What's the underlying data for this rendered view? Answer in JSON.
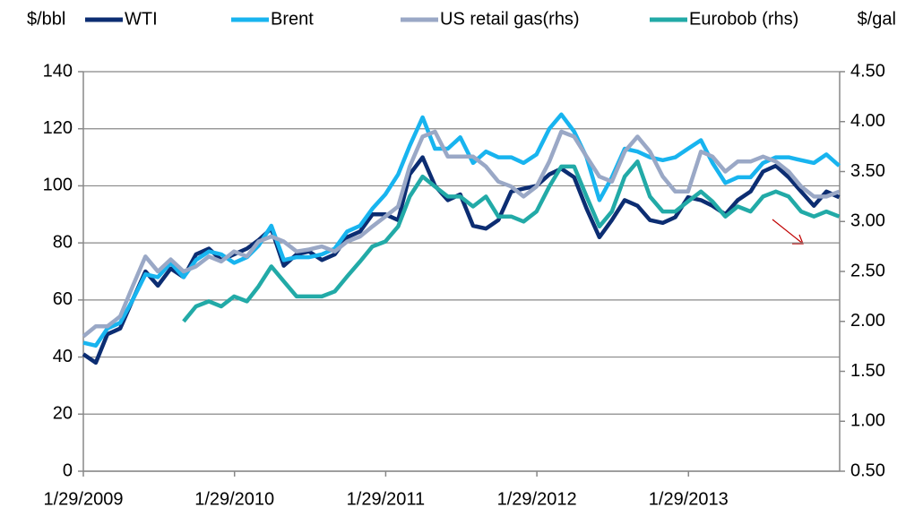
{
  "chart_data": {
    "type": "line",
    "ylabel": "$/bbl",
    "y2label": "$/gal",
    "x": [
      "1/29/2009",
      "2/28/2009",
      "3/28/2009",
      "4/28/2009",
      "5/28/2009",
      "6/28/2009",
      "7/28/2009",
      "8/28/2009",
      "9/28/2009",
      "10/28/2009",
      "11/28/2009",
      "12/28/2009",
      "1/28/2010",
      "2/28/2010",
      "3/28/2010",
      "4/28/2010",
      "5/28/2010",
      "6/28/2010",
      "7/28/2010",
      "8/28/2010",
      "9/28/2010",
      "10/28/2010",
      "11/28/2010",
      "12/28/2010",
      "1/28/2011",
      "2/28/2011",
      "3/28/2011",
      "4/28/2011",
      "5/28/2011",
      "6/28/2011",
      "7/28/2011",
      "8/28/2011",
      "9/28/2011",
      "10/28/2011",
      "11/28/2011",
      "12/28/2011",
      "1/28/2012",
      "2/28/2012",
      "3/28/2012",
      "4/28/2012",
      "5/28/2012",
      "6/28/2012",
      "7/28/2012",
      "8/28/2012",
      "9/28/2012",
      "10/28/2012",
      "11/28/2012",
      "12/28/2012",
      "1/28/2013",
      "2/28/2013",
      "3/28/2013",
      "4/28/2013",
      "5/28/2013",
      "6/28/2013",
      "7/28/2013",
      "8/28/2013",
      "9/28/2013",
      "10/28/2013",
      "11/28/2013",
      "12/28/2013",
      "1/28/2014"
    ],
    "xlim": [
      "1/29/2009",
      "1/29/2014"
    ],
    "xticks": [
      "1/29/2009",
      "1/29/2010",
      "1/29/2011",
      "1/29/2012",
      "1/29/2013"
    ],
    "ylim": [
      0,
      140
    ],
    "yticks": [
      0,
      20,
      40,
      60,
      80,
      100,
      120,
      140
    ],
    "y2lim": [
      0.5,
      4.5
    ],
    "y2ticks": [
      {
        "value": 0.5,
        "label": "0.50"
      },
      {
        "value": 1,
        "label": "1.00"
      },
      {
        "value": 1.5,
        "label": "1.50"
      },
      {
        "value": 2,
        "label": "2.00"
      },
      {
        "value": 2.5,
        "label": "2.50"
      },
      {
        "value": 3,
        "label": "3.00"
      },
      {
        "value": 3.5,
        "label": "3.50"
      },
      {
        "value": 4,
        "label": "4.00"
      },
      {
        "value": 4.5,
        "label": "4.50"
      }
    ],
    "grid": true,
    "legend": "top",
    "series": [
      {
        "name": "WTI",
        "color": "#0c2d72",
        "values": [
          41,
          38,
          48,
          50,
          60,
          70,
          65,
          71,
          68,
          76,
          78,
          74,
          76,
          78,
          81,
          85,
          72,
          76,
          77,
          74,
          76,
          82,
          84,
          90,
          90,
          88,
          104,
          110,
          100,
          95,
          97,
          86,
          85,
          88,
          98,
          99,
          100,
          104,
          106,
          103,
          92,
          82,
          88,
          95,
          93,
          88,
          87,
          89,
          96,
          95,
          93,
          90,
          95,
          98,
          105,
          107,
          103,
          98,
          93,
          98,
          96
        ]
      },
      {
        "name": "Brent",
        "color": "#18b4ef",
        "values": [
          45,
          44,
          50,
          52,
          60,
          69,
          68,
          73,
          68,
          74,
          77,
          76,
          73,
          75,
          79,
          86,
          74,
          75,
          75,
          76,
          78,
          84,
          86,
          92,
          97,
          104,
          114,
          124,
          113,
          113,
          117,
          108,
          112,
          110,
          110,
          108,
          111,
          120,
          125,
          119,
          110,
          95,
          103,
          113,
          112,
          110,
          109,
          110,
          113,
          116,
          108,
          101,
          103,
          103,
          108,
          110,
          110,
          109,
          108,
          111,
          107
        ]
      },
      {
        "name": "US retail gas(rhs)",
        "color": "#9aa8c6",
        "axis": "y2",
        "values": [
          1.85,
          1.95,
          1.95,
          2.05,
          2.35,
          2.65,
          2.5,
          2.62,
          2.5,
          2.55,
          2.65,
          2.6,
          2.7,
          2.65,
          2.8,
          2.85,
          2.8,
          2.7,
          2.72,
          2.75,
          2.7,
          2.8,
          2.85,
          2.95,
          3.05,
          3.15,
          3.55,
          3.85,
          3.9,
          3.65,
          3.65,
          3.65,
          3.55,
          3.4,
          3.35,
          3.25,
          3.35,
          3.6,
          3.9,
          3.85,
          3.65,
          3.45,
          3.4,
          3.7,
          3.85,
          3.7,
          3.45,
          3.3,
          3.3,
          3.7,
          3.65,
          3.5,
          3.6,
          3.6,
          3.65,
          3.6,
          3.5,
          3.35,
          3.25,
          3.25,
          3.3
        ]
      },
      {
        "name": "Eurobob (rhs)",
        "color": "#22aaa7",
        "axis": "y2",
        "values": [
          null,
          null,
          null,
          null,
          null,
          null,
          null,
          null,
          2.0,
          2.15,
          2.2,
          2.15,
          2.25,
          2.2,
          2.35,
          2.55,
          2.4,
          2.25,
          2.25,
          2.25,
          2.3,
          2.45,
          2.6,
          2.75,
          2.8,
          2.95,
          3.25,
          3.45,
          3.35,
          3.25,
          3.25,
          3.15,
          3.25,
          3.05,
          3.05,
          3.0,
          3.1,
          3.35,
          3.55,
          3.55,
          3.25,
          2.95,
          3.1,
          3.45,
          3.6,
          3.25,
          3.1,
          3.1,
          3.2,
          3.3,
          3.2,
          3.05,
          3.15,
          3.1,
          3.25,
          3.3,
          3.25,
          3.1,
          3.05,
          3.1,
          3.05
        ]
      }
    ]
  }
}
